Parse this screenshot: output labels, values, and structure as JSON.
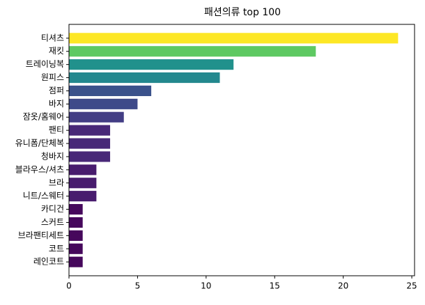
{
  "chart_data": {
    "type": "barh",
    "title": "패션의류 top 100",
    "categories": [
      "티셔츠",
      "재킷",
      "트레이닝복",
      "원피스",
      "점퍼",
      "바지",
      "잠옷/홈웨어",
      "팬티",
      "유니폼/단체복",
      "청바지",
      "블라우스/셔츠",
      "브라",
      "니트/스웨터",
      "카디건",
      "스커트",
      "브라팬티세트",
      "코트",
      "레인코트"
    ],
    "values": [
      24,
      18,
      12,
      11,
      6,
      5,
      4,
      3,
      3,
      3,
      2,
      2,
      2,
      1,
      1,
      1,
      1,
      1
    ],
    "colors": [
      "#fde725",
      "#5ec962",
      "#21918c",
      "#23888e",
      "#3b528b",
      "#3e4a89",
      "#433e85",
      "#482878",
      "#482878",
      "#482878",
      "#481c6e",
      "#481c6e",
      "#481c6e",
      "#46085c",
      "#46085c",
      "#46085c",
      "#46085c",
      "#46085c"
    ],
    "xlim": [
      0,
      25.2
    ],
    "xticks": [
      0,
      5,
      10,
      15,
      20,
      25
    ]
  }
}
